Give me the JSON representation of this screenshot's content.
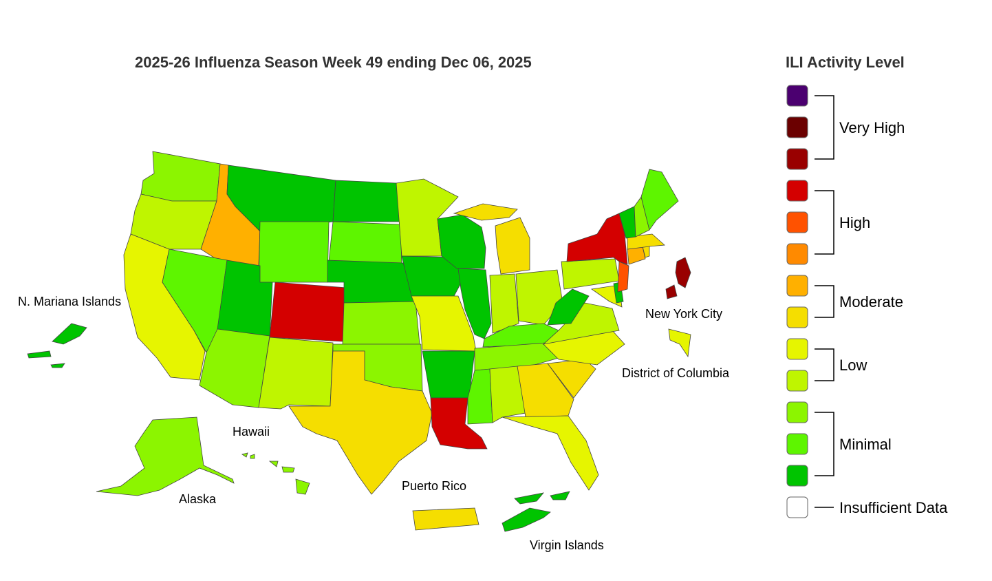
{
  "title": "2025-26 Influenza Season Week 49 ending Dec 06, 2025",
  "legend": {
    "title": "ILI Activity Level",
    "levels": [
      {
        "key": "very-high-3",
        "color": "#4b0070"
      },
      {
        "key": "very-high-2",
        "color": "#6b0000"
      },
      {
        "key": "very-high-1",
        "color": "#990000"
      },
      {
        "key": "high-3",
        "color": "#d40000"
      },
      {
        "key": "high-2",
        "color": "#ff5200"
      },
      {
        "key": "high-1",
        "color": "#ff8a00"
      },
      {
        "key": "moderate-2",
        "color": "#ffb000"
      },
      {
        "key": "moderate-1",
        "color": "#f5de00"
      },
      {
        "key": "low-2",
        "color": "#e6f500"
      },
      {
        "key": "low-1",
        "color": "#bff500"
      },
      {
        "key": "minimal-3",
        "color": "#8cf500"
      },
      {
        "key": "minimal-2",
        "color": "#5ef500"
      },
      {
        "key": "minimal-1",
        "color": "#00c400"
      },
      {
        "key": "insufficient",
        "color": "#ffffff"
      }
    ],
    "groups": {
      "very_high": "Very High",
      "high": "High",
      "moderate": "Moderate",
      "low": "Low",
      "minimal": "Minimal",
      "insufficient": "Insufficient Data"
    }
  },
  "labels": {
    "nmi": "N. Mariana Islands",
    "nyc": "New York City",
    "dc": "District of Columbia",
    "hawaii": "Hawaii",
    "alaska": "Alaska",
    "puerto_rico": "Puerto Rico",
    "virgin_islands": "Virgin Islands"
  }
}
